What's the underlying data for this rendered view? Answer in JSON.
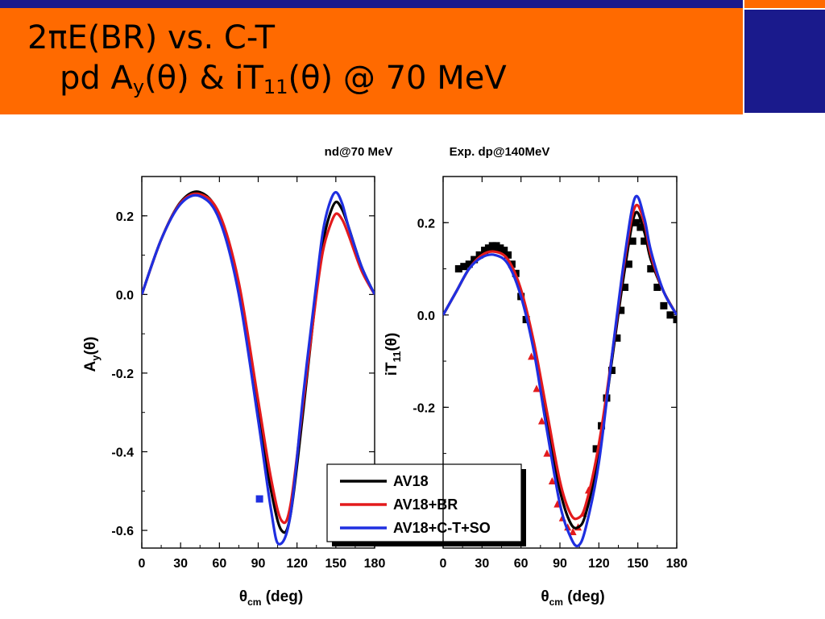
{
  "slide": {
    "title_line1": "2πE(BR) vs. C-T",
    "title_line2_prefix": "pd A",
    "title_line2_sub1": "y",
    "title_line2_mid": "(θ) & iT",
    "title_line2_sub2": "11",
    "title_line2_suffix": "(θ) @ 70 MeV",
    "colors": {
      "band": "#ff6a00",
      "accent": "#1a1a8c"
    }
  },
  "chart_data": [
    {
      "type": "line",
      "label": "nd@70 MeV",
      "xlabel": "θcm (deg)",
      "ylabel": "Ay(θ)",
      "xlim": [
        0,
        180
      ],
      "ylim": [
        -0.645,
        0.3
      ],
      "xticks": [
        "0",
        "30",
        "60",
        "90",
        "120",
        "150",
        "180"
      ],
      "yticks": [
        "0.2",
        "0.0",
        "-0.2",
        "-0.4",
        "-0.6"
      ],
      "series": [
        {
          "name": "AV18",
          "color": "#000000",
          "x": [
            0,
            15,
            30,
            45,
            60,
            75,
            90,
            100,
            108,
            115,
            125,
            135,
            140,
            145,
            150,
            155,
            160,
            170,
            180
          ],
          "y": [
            0.0,
            0.14,
            0.235,
            0.26,
            0.2,
            0.01,
            -0.3,
            -0.5,
            -0.6,
            -0.56,
            -0.29,
            0.01,
            0.13,
            0.2,
            0.235,
            0.215,
            0.17,
            0.07,
            0.0
          ]
        },
        {
          "name": "AV18+BR",
          "color": "#e31a1c",
          "x": [
            0,
            15,
            30,
            45,
            60,
            75,
            90,
            100,
            108,
            115,
            125,
            135,
            140,
            145,
            150,
            155,
            160,
            170,
            180
          ],
          "y": [
            0.0,
            0.14,
            0.233,
            0.255,
            0.205,
            0.03,
            -0.27,
            -0.47,
            -0.575,
            -0.535,
            -0.27,
            0.0,
            0.11,
            0.17,
            0.205,
            0.19,
            0.15,
            0.06,
            0.0
          ]
        },
        {
          "name": "AV18+C-T+SO",
          "color": "#1f2fe0",
          "x": [
            0,
            15,
            30,
            45,
            60,
            75,
            90,
            100,
            106,
            115,
            125,
            135,
            140,
            145,
            150,
            155,
            160,
            170,
            180
          ],
          "y": [
            0.0,
            0.14,
            0.23,
            0.25,
            0.19,
            0.0,
            -0.32,
            -0.55,
            -0.635,
            -0.56,
            -0.25,
            0.03,
            0.16,
            0.23,
            0.26,
            0.23,
            0.17,
            0.07,
            0.0
          ]
        }
      ],
      "data_points": [
        {
          "marker": "square",
          "color": "#1f2fe0",
          "x": [
            91
          ],
          "y": [
            -0.52
          ]
        }
      ],
      "legend": {
        "position": "bottom-right",
        "entries": [
          "AV18",
          "AV18+BR",
          "AV18+C-T+SO"
        ]
      }
    },
    {
      "type": "line",
      "label": "Exp.  dp@140MeV",
      "xlabel": "θcm (deg)",
      "ylabel": "iT11(θ)",
      "xlim": [
        0,
        180
      ],
      "ylim": [
        -0.505,
        0.3
      ],
      "xticks": [
        "0",
        "30",
        "60",
        "90",
        "120",
        "150",
        "180"
      ],
      "yticks": [
        "0.2",
        "0.0",
        "-0.2"
      ],
      "series": [
        {
          "name": "AV18",
          "color": "#000000",
          "x": [
            0,
            10,
            20,
            30,
            40,
            50,
            60,
            70,
            80,
            90,
            98,
            104,
            110,
            120,
            130,
            140,
            148,
            155,
            160,
            170,
            180
          ],
          "y": [
            0.0,
            0.05,
            0.1,
            0.13,
            0.14,
            0.12,
            0.05,
            -0.07,
            -0.23,
            -0.38,
            -0.45,
            -0.46,
            -0.43,
            -0.3,
            -0.1,
            0.1,
            0.22,
            0.18,
            0.12,
            0.05,
            0.0
          ]
        },
        {
          "name": "AV18+BR",
          "color": "#e31a1c",
          "x": [
            0,
            10,
            20,
            30,
            40,
            50,
            60,
            70,
            80,
            90,
            98,
            104,
            110,
            120,
            130,
            140,
            148,
            155,
            160,
            170,
            180
          ],
          "y": [
            0.0,
            0.05,
            0.1,
            0.13,
            0.137,
            0.12,
            0.055,
            -0.06,
            -0.21,
            -0.36,
            -0.43,
            -0.44,
            -0.41,
            -0.28,
            -0.09,
            0.12,
            0.235,
            0.2,
            0.13,
            0.05,
            0.0
          ]
        },
        {
          "name": "AV18+C-T+SO",
          "color": "#1f2fe0",
          "x": [
            0,
            10,
            20,
            30,
            40,
            50,
            60,
            70,
            80,
            90,
            98,
            104,
            110,
            120,
            130,
            140,
            148,
            155,
            160,
            170,
            180
          ],
          "y": [
            0.0,
            0.05,
            0.1,
            0.125,
            0.13,
            0.11,
            0.04,
            -0.08,
            -0.25,
            -0.41,
            -0.48,
            -0.5,
            -0.46,
            -0.32,
            -0.09,
            0.13,
            0.255,
            0.21,
            0.14,
            0.05,
            0.0
          ]
        }
      ],
      "data_points": [
        {
          "marker": "square",
          "color": "#000000",
          "x": [
            12,
            16,
            20,
            24,
            28,
            32,
            35,
            38,
            41,
            44,
            47,
            50,
            53,
            56,
            60,
            64,
            118,
            122,
            126,
            130,
            134,
            137,
            140,
            143,
            146,
            149,
            152,
            155,
            160,
            165,
            170,
            175,
            180
          ],
          "y": [
            0.1,
            0.105,
            0.11,
            0.12,
            0.13,
            0.14,
            0.145,
            0.15,
            0.15,
            0.145,
            0.14,
            0.13,
            0.11,
            0.09,
            0.04,
            -0.01,
            -0.29,
            -0.24,
            -0.18,
            -0.12,
            -0.05,
            0.01,
            0.06,
            0.11,
            0.16,
            0.2,
            0.19,
            0.16,
            0.1,
            0.06,
            0.02,
            0.0,
            -0.01
          ]
        },
        {
          "marker": "triangle",
          "color": "#e31a1c",
          "x": [
            68,
            72,
            76,
            80,
            84,
            88,
            92,
            96,
            100,
            104,
            108,
            112
          ],
          "y": [
            -0.09,
            -0.16,
            -0.23,
            -0.3,
            -0.36,
            -0.41,
            -0.44,
            -0.46,
            -0.47,
            -0.46,
            -0.43,
            -0.38
          ]
        }
      ]
    }
  ]
}
